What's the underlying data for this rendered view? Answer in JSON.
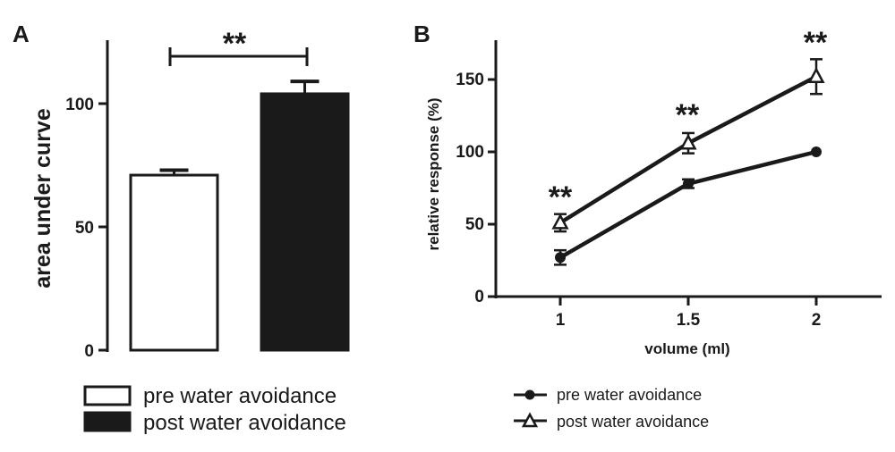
{
  "chart_data": [
    {
      "panel": "A",
      "type": "bar",
      "categories": [
        "pre water avoidance",
        "post water avoidance"
      ],
      "values": [
        71,
        104
      ],
      "errors": [
        2,
        5
      ],
      "colors": [
        "#ffffff",
        "#1a1a1a"
      ],
      "xlabel": "",
      "ylabel": "area under curve",
      "ylim": [
        0,
        125
      ],
      "yticks": [
        0,
        50,
        100
      ],
      "significance": "**",
      "legend": [
        "pre water avoidance",
        "post water avoidance"
      ],
      "legend_placement": "bottom"
    },
    {
      "panel": "B",
      "type": "line",
      "x": [
        1,
        1.5,
        2
      ],
      "xticks": [
        "1",
        "1.5",
        "2"
      ],
      "series": [
        {
          "name": "pre water avoidance",
          "marker": "circle",
          "values": [
            27,
            78,
            100
          ],
          "errors": [
            5,
            3,
            0
          ]
        },
        {
          "name": "post water avoidance",
          "marker": "triangle",
          "values": [
            51,
            106,
            152
          ],
          "errors": [
            6,
            7,
            12
          ]
        }
      ],
      "xlabel": "volume (ml)",
      "ylabel": "relative response (%)",
      "ylim": [
        0,
        175
      ],
      "yticks": [
        0,
        50,
        100,
        150
      ],
      "significance": [
        "**",
        "**",
        "**"
      ],
      "legend_placement": "bottom"
    }
  ]
}
